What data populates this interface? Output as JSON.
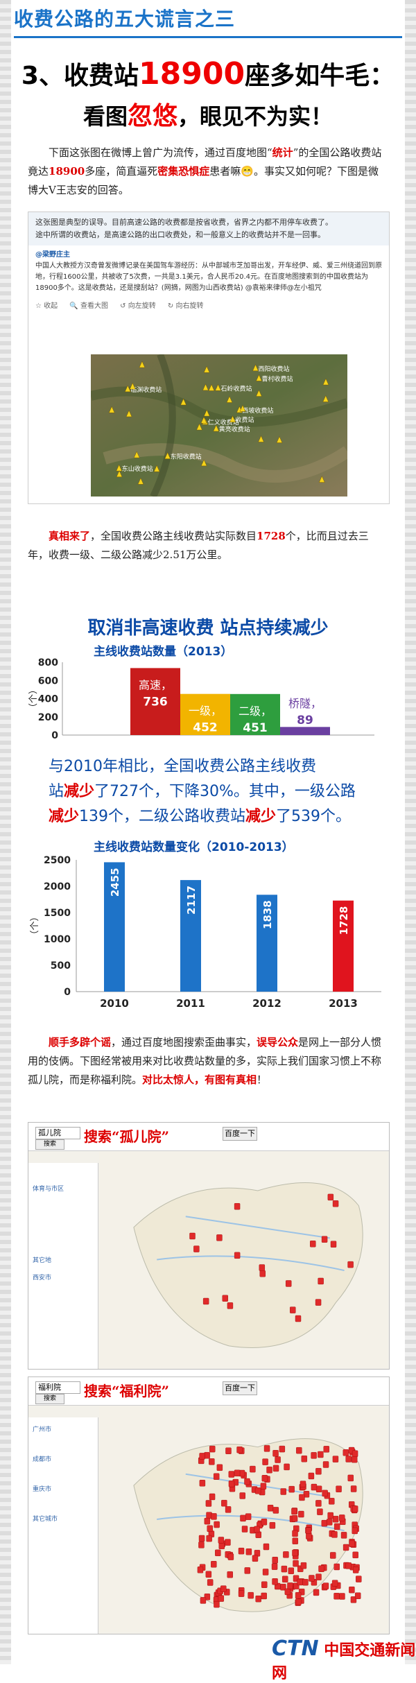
{
  "header": {
    "title": "收费公路的五大谎言之三",
    "line2_prefix": "3、收费站",
    "line2_number": "18900",
    "line2_suffix": "座多如牛毛：",
    "line3_a": "看图",
    "line3_red": "忽悠",
    "line3_b": "，眼见不为实！"
  },
  "intro": {
    "p1": "下面这张图在微博上曾广为流传，通过百度地图“",
    "p1_red1": "统计",
    "p2": "”的全国公路收费站竟达",
    "p2_red": "18900",
    "p3": "多座，简直逼死",
    "p3_red": "密集恐惧症",
    "p4": "患者嘛",
    "emoji": "😁",
    "p5": "。事实又如何呢？下图是微博大V王志安的回答。"
  },
  "weibo": {
    "top_line1": "这张图是典型的误导。目前高速公路的收费都是按省收费，省界之内都不用停车收费了。",
    "top_line2": "途中所谓的收费站，是高速公路的出口收费处，和一般意义上的收费站并不是一回事。",
    "user": "@梁野庄主",
    "post": "中国人大教授方汉奇曾发微博记录在美国驾车游经历：从中部城市芝加哥出发，开车经伊、威、爱三州绕道回到原地，行程1600公里，共被收了5次费，一共是3.1美元，合人民币20.4元。在百度地图搜索到的中国收费站为18900多个。这是收费站，还是搜刮站？(网摘，网图为山西收费站) @袁裕来律师@左小祖咒",
    "tools": [
      "☆ 收起",
      "🔍 查看大图",
      "↺ 向左旋转",
      "↻ 向右旋转"
    ],
    "map_labels": [
      "黄亮收费站",
      "临渊收费站",
      "仁义收费站",
      "东山收费站",
      "西坡收费站",
      "东阳收费站",
      "西阳收费站",
      "石岭收费站",
      "曹村收费站",
      "收费站"
    ]
  },
  "truth": {
    "red": "真相来了",
    "t1": "，全国收费公路主线收费站实际数目",
    "red_num": "1728",
    "t2": "个，比而且过去三年，收费一级、二级公路减少2.51万公里。"
  },
  "banner": "取消非高速收费  站点持续减少",
  "chart1": {
    "type": "bar",
    "title": "主线收费站数量（2013）",
    "ylabel": "（个）",
    "yticks": [
      "800",
      "600",
      "400",
      "200",
      "0"
    ],
    "ylim": [
      0,
      800
    ],
    "categories": [
      "高速",
      "一级",
      "二级",
      "桥隧"
    ],
    "values": [
      736,
      452,
      451,
      89
    ],
    "labels": [
      "高速，",
      "一级，",
      "二级，",
      "桥隧，"
    ],
    "colors": [
      "#c81c1c",
      "#f2b400",
      "#2e9e3e",
      "#6a3fa0"
    ],
    "label_colors": [
      "#ffffff",
      "#ffffff",
      "#ffffff",
      "#6a3fa0"
    ]
  },
  "compare": {
    "t1": "与2010年相比，全国收费公路主线收费",
    "t2a": "站",
    "t2red": "减少",
    "t2b": "了727个，下降30%。其中，一级公路",
    "t3red": "减少",
    "t3a": "139个，二级公路收费站",
    "t3red2": "减少",
    "t3b": "了539个。"
  },
  "chart2": {
    "type": "bar",
    "title": "主线收费站数量变化（2010-2013）",
    "ylabel": "（个）",
    "yticks": [
      "2500",
      "2000",
      "1500",
      "1000",
      "500",
      "0"
    ],
    "ylim": [
      0,
      2500
    ],
    "categories": [
      "2010",
      "2011",
      "2012",
      "2013"
    ],
    "values": [
      2455,
      2117,
      1838,
      1728
    ],
    "colors": [
      "#1e73c8",
      "#1e73c8",
      "#1e73c8",
      "#e0141e"
    ]
  },
  "rumor": {
    "red1": "顺手多辟个谣",
    "t1": "，通过百度地图搜索歪曲事实，",
    "red2": "误导公众",
    "t2": "是网上一部分人惯用的伎俩。下图经常被用来对比收费站数量的多，实际上我们国家习惯上不称孤儿院，而是称福利院。",
    "red3": "对比太惊人，有图有真相",
    "t3": "！"
  },
  "map1": {
    "input": "孤儿院",
    "search_btn": "搜索",
    "btn2": "百度一下",
    "label": "搜索“孤儿院”",
    "side": [
      "体育与市区",
      "其它地",
      "西安市"
    ],
    "markers": 21
  },
  "map2": {
    "input": "福利院",
    "search_btn": "搜索",
    "btn2": "百度一下",
    "label": "搜索“福利院”",
    "side": [
      "广州市",
      "成都市",
      "重庆市",
      "其它城市"
    ],
    "markers": 220
  },
  "footer": {
    "logo": "CTN",
    "name": "中国交通新闻网"
  }
}
